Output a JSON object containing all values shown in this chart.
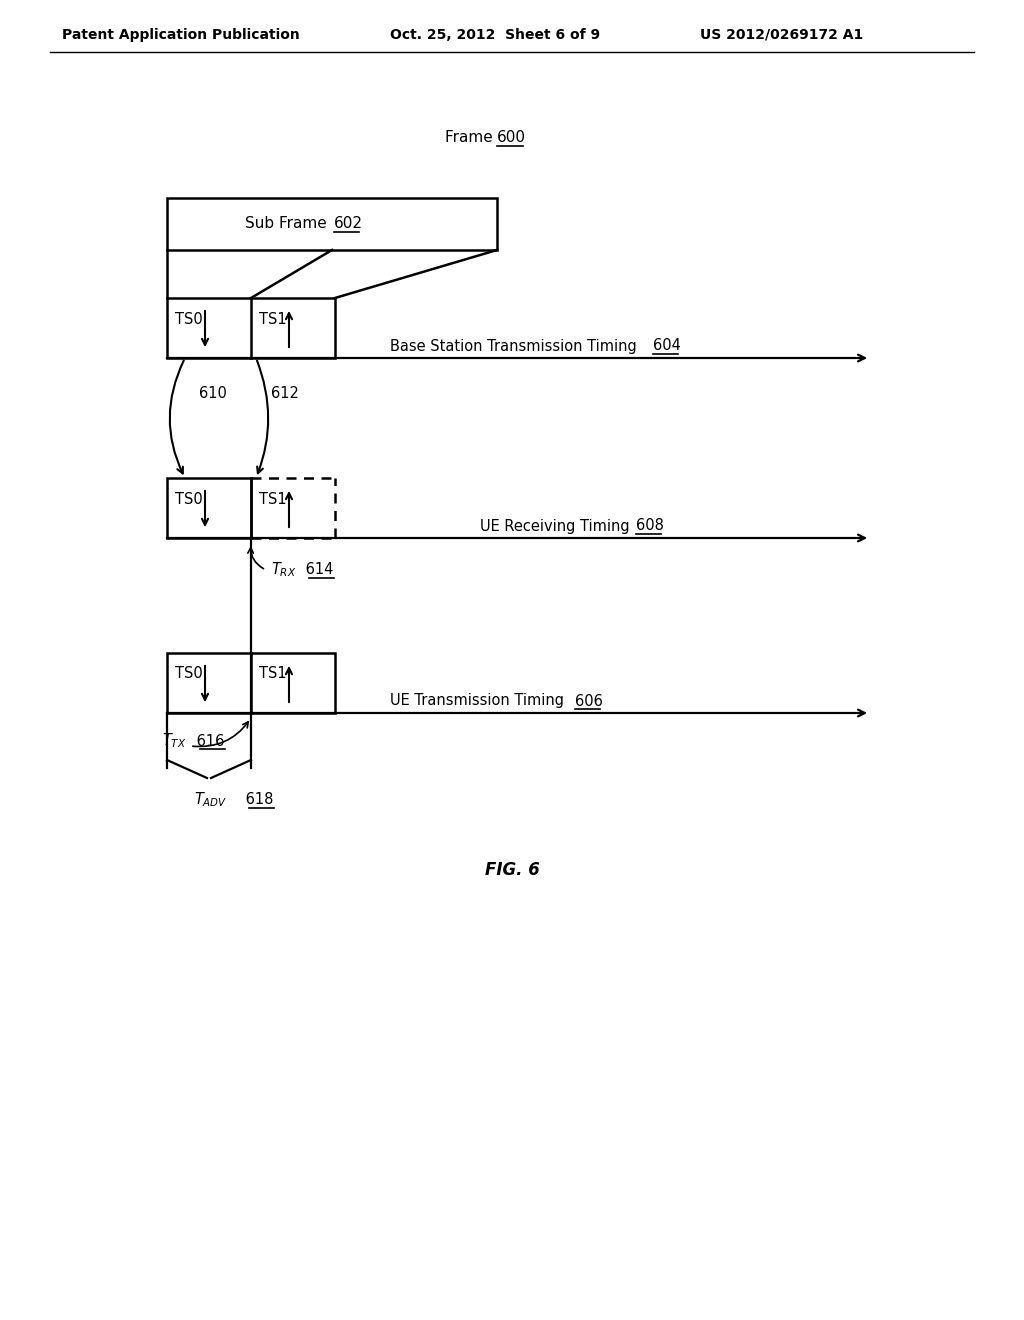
{
  "bg_color": "#ffffff",
  "header_left": "Patent Application Publication",
  "header_mid": "Oct. 25, 2012  Sheet 6 of 9",
  "header_right": "US 2012/0269172 A1",
  "fig_label": "FIG. 6"
}
